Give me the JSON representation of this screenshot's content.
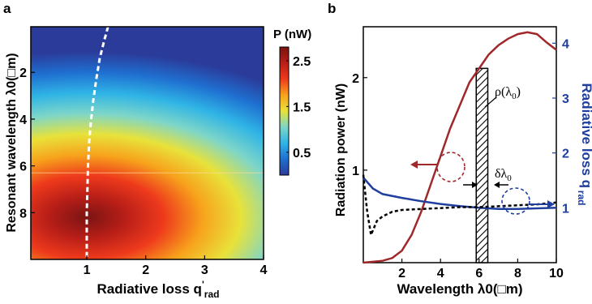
{
  "chart_data": [
    {
      "panel": "a",
      "type": "heatmap",
      "xlabel": "Radiative loss q'rad",
      "xlabel_main": "Radiative loss q",
      "xlabel_sup": "'",
      "xlabel_sub": "rad",
      "ylabel": "Resonant wavelength λ0(□m)",
      "xlim": [
        0.05,
        4.0
      ],
      "ylim": [
        10.0,
        0.05
      ],
      "xticks": [
        1,
        2,
        3,
        4
      ],
      "yticks": [
        2,
        4,
        6,
        8
      ],
      "colorbar": {
        "title": "P (nW)",
        "ticks": [
          0.5,
          1.5,
          2.5
        ],
        "range": [
          0.0,
          2.8
        ],
        "colors": [
          "#2b3b9a",
          "#1f6fd0",
          "#2fb4e6",
          "#7ed6c8",
          "#e8e23a",
          "#f7a21c",
          "#ee3a1c",
          "#b81e18",
          "#7a1412"
        ]
      },
      "peak": {
        "x": 1.0,
        "y": 8.2,
        "value": 2.8
      },
      "optimal_curve": {
        "style": "white dashed",
        "x": [
          1.36,
          1.3,
          1.22,
          1.16,
          1.11,
          1.07,
          1.04,
          1.02,
          1.01,
          1.0,
          1.0,
          1.0
        ],
        "y": [
          0.05,
          0.6,
          1.4,
          2.3,
          3.2,
          4.1,
          5.0,
          6.0,
          7.0,
          8.0,
          9.0,
          10.0
        ]
      },
      "faint_line_y": 6.3
    },
    {
      "panel": "b",
      "type": "line",
      "xlabel": "Wavelength λ0(□m)",
      "ylabel_left": "Radiation power (nW)",
      "ylabel_right": "Radiative loss q'rad",
      "ylabel_right_main": "Radiative loss q",
      "ylabel_right_sup": "'",
      "ylabel_right_sub": "rad",
      "xlim": [
        0.0,
        10.0
      ],
      "xticks": [
        2,
        4,
        6,
        8,
        10
      ],
      "ylim_left": [
        0.0,
        2.55
      ],
      "yticks_left": [
        1,
        2
      ],
      "ylim_right": [
        0.0,
        4.3
      ],
      "yticks_right": [
        1,
        2,
        3,
        4
      ],
      "series": [
        {
          "axis": "left",
          "style": "solid",
          "color": "#a0282a",
          "x": [
            0.0,
            1.0,
            1.5,
            2.0,
            2.5,
            3.0,
            3.5,
            4.0,
            4.5,
            5.0,
            5.5,
            6.0,
            6.5,
            7.0,
            7.5,
            8.0,
            8.5,
            9.0,
            9.5,
            10.0
          ],
          "y": [
            0.0,
            0.02,
            0.05,
            0.13,
            0.3,
            0.55,
            0.85,
            1.15,
            1.45,
            1.7,
            1.95,
            2.1,
            2.25,
            2.35,
            2.42,
            2.47,
            2.49,
            2.47,
            2.38,
            2.3
          ]
        },
        {
          "axis": "right",
          "style": "solid",
          "color": "#1f3e9e",
          "x": [
            0.0,
            0.5,
            1.0,
            2.0,
            3.0,
            4.0,
            5.0,
            6.0,
            7.0,
            8.0,
            9.0,
            10.0
          ],
          "y": [
            1.55,
            1.35,
            1.25,
            1.18,
            1.12,
            1.07,
            1.03,
            1.0,
            0.98,
            0.98,
            0.99,
            1.0
          ]
        },
        {
          "axis": "left",
          "style": "dashed",
          "color": "#000000",
          "x": [
            0.0,
            0.2,
            0.4,
            0.7,
            1.0,
            1.5,
            2.0,
            3.0,
            4.0,
            5.0,
            6.0,
            7.0,
            8.0,
            9.0,
            10.0
          ],
          "y": [
            0.95,
            0.55,
            0.3,
            0.45,
            0.5,
            0.55,
            0.57,
            0.58,
            0.59,
            0.6,
            0.6,
            0.61,
            0.62,
            0.63,
            0.65
          ]
        }
      ],
      "hatched_band": {
        "x": [
          5.85,
          6.45
        ],
        "label": "δλ0",
        "label_main": "δλ",
        "label_sub": "0"
      },
      "annotation": {
        "text": "ρ(λ0)",
        "main": "ρ(λ",
        "sub": "0",
        "tail": ")"
      }
    }
  ],
  "panel_labels": {
    "a": "a",
    "b": "b"
  }
}
